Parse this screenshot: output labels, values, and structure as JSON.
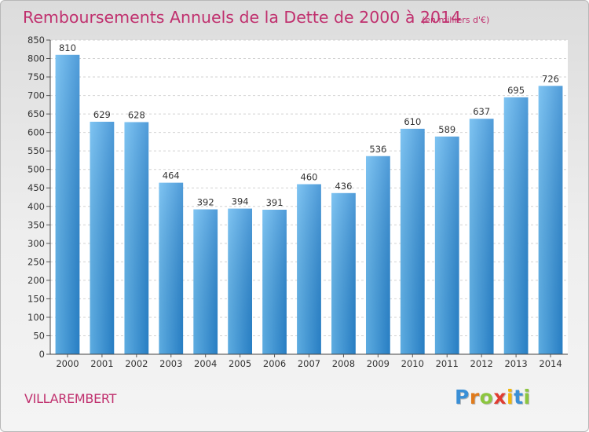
{
  "chart_data": {
    "type": "bar",
    "title": "Remboursements Annuels de la Dette de 2000 à 2014",
    "subtitle": "(en milliers d'€)",
    "categories": [
      "2000",
      "2001",
      "2002",
      "2003",
      "2004",
      "2005",
      "2006",
      "2007",
      "2008",
      "2009",
      "2010",
      "2011",
      "2012",
      "2013",
      "2014"
    ],
    "values": [
      810,
      629,
      628,
      464,
      392,
      394,
      391,
      460,
      436,
      536,
      610,
      589,
      637,
      695,
      726
    ],
    "ylim": [
      0,
      850
    ],
    "ytick_step": 50,
    "xlabel": "",
    "ylabel": "",
    "bar_color": "#2f8fd8",
    "bar_color_light": "#63b7ef",
    "grid": true
  },
  "commune": "VILLAREMBERT",
  "logo": {
    "letters": [
      {
        "char": "P",
        "color": "#3a8fd6"
      },
      {
        "char": "r",
        "color": "#e07b1c"
      },
      {
        "char": "o",
        "color": "#8cc63f"
      },
      {
        "char": "x",
        "color": "#e03c31"
      },
      {
        "char": "i",
        "color": "#f1b60b"
      },
      {
        "char": "t",
        "color": "#3a8fd6"
      },
      {
        "char": "i",
        "color": "#8cc63f"
      }
    ]
  }
}
